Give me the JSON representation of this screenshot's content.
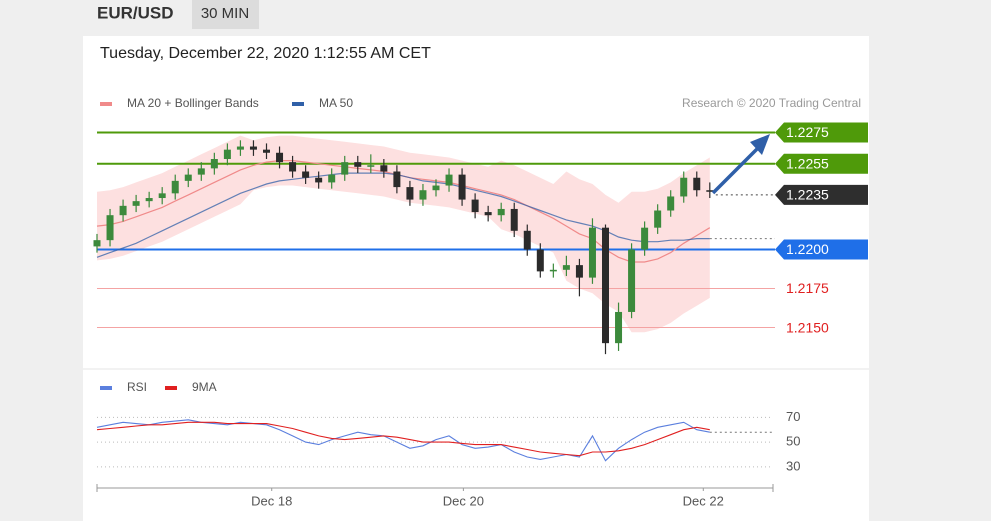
{
  "header": {
    "symbol": "EUR/USD",
    "timeframe": "30 MIN",
    "date": "Tuesday, December 22, 2020 1:12:55 AM CET"
  },
  "chart_data": [
    {
      "type": "candlestick",
      "source": "Research © 2020 Trading Central",
      "up_color": "#3c8a3c",
      "down_color": "#2b2b2b",
      "xlim": [
        0,
        52
      ],
      "ylim": [
        1.2126,
        1.2283
      ],
      "x": [
        0,
        1,
        2,
        3,
        4,
        5,
        6,
        7,
        8,
        9,
        10,
        11,
        12,
        13,
        14,
        15,
        16,
        17,
        18,
        19,
        20,
        21,
        22,
        23,
        24,
        25,
        26,
        27,
        28,
        29,
        30,
        31,
        32,
        33,
        34,
        35,
        36,
        37,
        38,
        39,
        40,
        41,
        42,
        43,
        44,
        45,
        46,
        47
      ],
      "open": [
        1.2202,
        1.2206,
        1.2222,
        1.2228,
        1.2231,
        1.2233,
        1.2236,
        1.2244,
        1.2248,
        1.2252,
        1.2258,
        1.2264,
        1.2266,
        1.2264,
        1.2262,
        1.2256,
        1.225,
        1.2246,
        1.2243,
        1.2248,
        1.2256,
        1.2253,
        1.2254,
        1.225,
        1.224,
        1.2232,
        1.2238,
        1.2241,
        1.2248,
        1.2232,
        1.2224,
        1.2222,
        1.2226,
        1.2212,
        1.22,
        1.2186,
        1.2187,
        1.219,
        1.2182,
        1.2214,
        1.214,
        1.216,
        1.22,
        1.2214,
        1.2225,
        1.2234,
        1.2246,
        1.2238
      ],
      "high": [
        1.221,
        1.2226,
        1.2232,
        1.2235,
        1.2237,
        1.224,
        1.2248,
        1.2252,
        1.2256,
        1.2262,
        1.2268,
        1.227,
        1.227,
        1.2268,
        1.2266,
        1.226,
        1.2254,
        1.225,
        1.2252,
        1.226,
        1.226,
        1.2261,
        1.2258,
        1.2254,
        1.2244,
        1.2242,
        1.2245,
        1.2252,
        1.2252,
        1.2236,
        1.2228,
        1.223,
        1.223,
        1.2216,
        1.2204,
        1.2191,
        1.2196,
        1.2194,
        1.222,
        1.2216,
        1.2166,
        1.2204,
        1.2218,
        1.2229,
        1.2238,
        1.225,
        1.225,
        1.2243
      ],
      "low": [
        1.2198,
        1.2202,
        1.2218,
        1.2224,
        1.2227,
        1.2229,
        1.2232,
        1.224,
        1.2244,
        1.2248,
        1.2254,
        1.226,
        1.226,
        1.2258,
        1.2252,
        1.2246,
        1.2242,
        1.2239,
        1.2239,
        1.2244,
        1.2249,
        1.2249,
        1.2246,
        1.2236,
        1.2228,
        1.2228,
        1.2234,
        1.2237,
        1.2228,
        1.222,
        1.2218,
        1.2218,
        1.2208,
        1.2196,
        1.2182,
        1.2182,
        1.2183,
        1.217,
        1.2178,
        1.2133,
        1.2135,
        1.2156,
        1.2196,
        1.221,
        1.2221,
        1.223,
        1.2234,
        1.2233
      ],
      "close": [
        1.2206,
        1.2222,
        1.2228,
        1.2231,
        1.2233,
        1.2236,
        1.2244,
        1.2248,
        1.2252,
        1.2258,
        1.2264,
        1.2266,
        1.2264,
        1.2262,
        1.2256,
        1.225,
        1.2246,
        1.2243,
        1.2248,
        1.2256,
        1.2253,
        1.2254,
        1.225,
        1.224,
        1.2232,
        1.2238,
        1.2241,
        1.2248,
        1.2232,
        1.2224,
        1.2222,
        1.2226,
        1.2212,
        1.22,
        1.2186,
        1.2187,
        1.219,
        1.2182,
        1.2214,
        1.214,
        1.216,
        1.22,
        1.2214,
        1.2225,
        1.2234,
        1.2246,
        1.2238,
        1.2237
      ],
      "series": [
        {
          "name": "MA 20 + Bollinger Bands",
          "color": "#f08a8a",
          "band_color": "#fde0e0",
          "values": [
            1.2215,
            1.2216,
            1.2218,
            1.2221,
            1.2224,
            1.2227,
            1.2231,
            1.2235,
            1.2239,
            1.2243,
            1.2247,
            1.2251,
            1.2254,
            1.2256,
            1.2257,
            1.2257,
            1.2256,
            1.2255,
            1.2254,
            1.2253,
            1.2252,
            1.2251,
            1.225,
            1.2248,
            1.2246,
            1.2245,
            1.2244,
            1.2243,
            1.2241,
            1.2239,
            1.2237,
            1.2235,
            1.2232,
            1.2228,
            1.2224,
            1.222,
            1.2215,
            1.221,
            1.2207,
            1.22,
            1.2195,
            1.2192,
            1.2192,
            1.2194,
            1.2198,
            1.2204,
            1.2209,
            1.2214
          ],
          "upper": [
            1.2237,
            1.2238,
            1.224,
            1.2243,
            1.2246,
            1.2249,
            1.2253,
            1.2257,
            1.2261,
            1.2265,
            1.2269,
            1.2273,
            1.227,
            1.2272,
            1.2273,
            1.2273,
            1.2272,
            1.2271,
            1.227,
            1.2269,
            1.2268,
            1.2267,
            1.2266,
            1.2264,
            1.2262,
            1.2261,
            1.226,
            1.2259,
            1.2257,
            1.2255,
            1.2253,
            1.2257,
            1.2254,
            1.225,
            1.2246,
            1.2242,
            1.225,
            1.2245,
            1.2242,
            1.2235,
            1.223,
            1.2237,
            1.2237,
            1.2239,
            1.2243,
            1.2249,
            1.2254,
            1.2259
          ],
          "lower": [
            1.2193,
            1.2194,
            1.2196,
            1.2199,
            1.2202,
            1.2205,
            1.2209,
            1.2213,
            1.2217,
            1.2221,
            1.2225,
            1.2229,
            1.2238,
            1.224,
            1.2241,
            1.2241,
            1.224,
            1.2239,
            1.2238,
            1.2237,
            1.2236,
            1.2235,
            1.2234,
            1.2232,
            1.223,
            1.2229,
            1.2228,
            1.2227,
            1.2225,
            1.2223,
            1.2221,
            1.2213,
            1.221,
            1.2206,
            1.2202,
            1.2198,
            1.218,
            1.2175,
            1.2172,
            1.2165,
            1.216,
            1.2147,
            1.2147,
            1.2149,
            1.2153,
            1.2159,
            1.2164,
            1.2169
          ]
        },
        {
          "name": "MA 50",
          "color": "#3060a8",
          "values": [
            1.2195,
            1.2198,
            1.2201,
            1.2204,
            1.2208,
            1.2212,
            1.2216,
            1.222,
            1.2224,
            1.2228,
            1.2232,
            1.2236,
            1.2239,
            1.2242,
            1.2244,
            1.2245,
            1.2246,
            1.2247,
            1.2248,
            1.2249,
            1.2249,
            1.2249,
            1.2249,
            1.2248,
            1.2246,
            1.2244,
            1.2243,
            1.2242,
            1.224,
            1.2238,
            1.2236,
            1.2234,
            1.2231,
            1.2228,
            1.2225,
            1.2222,
            1.2219,
            1.2217,
            1.2215,
            1.2212,
            1.2208,
            1.2206,
            1.2205,
            1.2205,
            1.2206,
            1.2206,
            1.2207,
            1.2207
          ]
        }
      ],
      "levels": [
        {
          "value": 1.2275,
          "label": "1.2275",
          "color": "#4f9a0a",
          "box": true
        },
        {
          "value": 1.2255,
          "label": "1.2255",
          "color": "#4f9a0a",
          "box": true
        },
        {
          "value": 1.2235,
          "label": "1.2235",
          "color": "#2e2e2e",
          "box": true,
          "line": "dotted"
        },
        {
          "value": 1.22,
          "label": "1.2200",
          "color": "#1f6fe8",
          "box": true
        },
        {
          "value": 1.2175,
          "label": "1.2175",
          "color": "#e02020",
          "box": false
        },
        {
          "value": 1.215,
          "label": "1.2150",
          "color": "#e02020",
          "box": false
        }
      ]
    },
    {
      "type": "line",
      "xlim": [
        0,
        52
      ],
      "ylim": [
        21,
        80
      ],
      "yticks": [
        30,
        50,
        70
      ],
      "xticks": [
        {
          "value": 13.4,
          "label": "Dec 18"
        },
        {
          "value": 28.1,
          "label": "Dec 20"
        },
        {
          "value": 46.5,
          "label": "Dec 22"
        }
      ],
      "x": [
        0,
        1,
        2,
        3,
        4,
        5,
        6,
        7,
        8,
        9,
        10,
        11,
        12,
        13,
        14,
        15,
        16,
        17,
        18,
        19,
        20,
        21,
        22,
        23,
        24,
        25,
        26,
        27,
        28,
        29,
        30,
        31,
        32,
        33,
        34,
        35,
        36,
        37,
        38,
        39,
        40,
        41,
        42,
        43,
        44,
        45,
        46,
        47
      ],
      "series": [
        {
          "name": "RSI",
          "color": "#5b7fde",
          "values": [
            62,
            64,
            66,
            65,
            64,
            66,
            67,
            68,
            66,
            65,
            64,
            66,
            65,
            64,
            60,
            55,
            50,
            48,
            52,
            55,
            58,
            56,
            55,
            50,
            45,
            47,
            52,
            55,
            48,
            45,
            46,
            48,
            42,
            38,
            36,
            38,
            40,
            38,
            55,
            35,
            45,
            52,
            58,
            62,
            64,
            66,
            60,
            58
          ]
        },
        {
          "name": "9MA",
          "color": "#e02020",
          "values": [
            60,
            61,
            62,
            63,
            64,
            64,
            65,
            66,
            66,
            66,
            65,
            65,
            65,
            65,
            63,
            61,
            58,
            55,
            53,
            52,
            53,
            54,
            55,
            54,
            52,
            50,
            50,
            50,
            49,
            48,
            48,
            48,
            46,
            44,
            42,
            41,
            40,
            39,
            42,
            42,
            43,
            45,
            48,
            52,
            56,
            60,
            62,
            60
          ]
        }
      ]
    }
  ]
}
